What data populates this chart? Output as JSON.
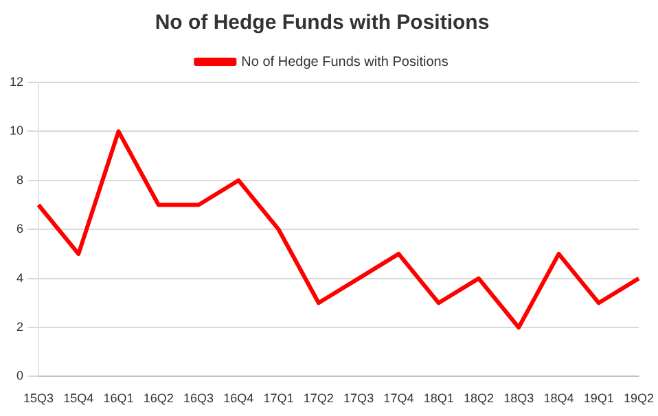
{
  "chart_data": {
    "type": "line",
    "title": "No of Hedge Funds with Positions",
    "categories": [
      "15Q3",
      "15Q4",
      "16Q1",
      "16Q2",
      "16Q3",
      "16Q4",
      "17Q1",
      "17Q2",
      "17Q3",
      "17Q4",
      "18Q1",
      "18Q2",
      "18Q3",
      "18Q4",
      "19Q1",
      "19Q2"
    ],
    "series": [
      {
        "name": "No of Hedge Funds with Positions",
        "color": "#ff0000",
        "values": [
          7,
          5,
          10,
          7,
          7,
          8,
          6,
          3,
          4,
          5,
          3,
          4,
          2,
          5,
          3,
          4
        ]
      }
    ],
    "ylim": [
      0,
      12
    ],
    "yticks": [
      0,
      2,
      4,
      6,
      8,
      10,
      12
    ],
    "grid": "y",
    "legend": "top",
    "marker": "none",
    "line_style": "solid"
  }
}
